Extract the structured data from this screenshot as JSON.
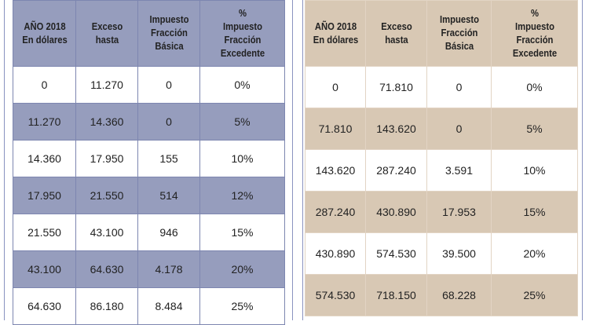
{
  "headers": [
    "AÑO 2018\nEn dólares",
    "Exceso\nhasta",
    "Impuesto\nFracción\nBásica",
    "%\nImpuesto\nFracción\nExcedente"
  ],
  "left_table": {
    "color": "#969dbd",
    "rows": [
      [
        "0",
        "11.270",
        "0",
        "0%"
      ],
      [
        "11.270",
        "14.360",
        "0",
        "5%"
      ],
      [
        "14.360",
        "17.950",
        "155",
        "10%"
      ],
      [
        "17.950",
        "21.550",
        "514",
        "12%"
      ],
      [
        "21.550",
        "43.100",
        "946",
        "15%"
      ],
      [
        "43.100",
        "64.630",
        "4.178",
        "20%"
      ],
      [
        "64.630",
        "86.180",
        "8.484",
        "25%"
      ]
    ]
  },
  "right_table": {
    "color": "#d8c8b4",
    "rows": [
      [
        "0",
        "71.810",
        "0",
        "0%"
      ],
      [
        "71.810",
        "143.620",
        "0",
        "5%"
      ],
      [
        "143.620",
        "287.240",
        "3.591",
        "10%"
      ],
      [
        "287.240",
        "430.890",
        "17.953",
        "15%"
      ],
      [
        "430.890",
        "574.530",
        "39.500",
        "20%"
      ],
      [
        "574.530",
        "718.150",
        "68.228",
        "25%"
      ]
    ]
  }
}
